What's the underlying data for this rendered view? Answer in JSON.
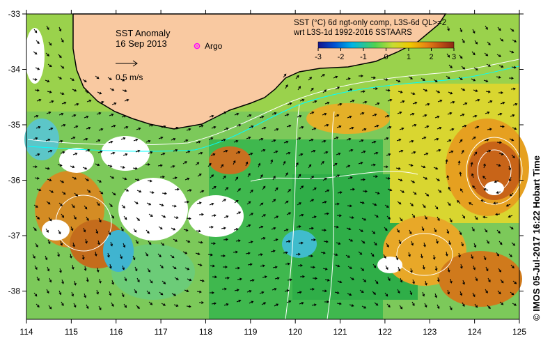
{
  "map": {
    "title": "SST Anomaly",
    "date": "16 Sep 2013",
    "argo_label": "Argo",
    "arrow_label": "0.5 m/s",
    "colorbar": {
      "title_line1": "SST (°C) 6d ngt-only comp, L3S-6d QL>=2",
      "title_line2": "wrt L3S-1d 1992-2016 SSTAARS",
      "ticks": [
        "-3",
        "-2",
        "-1",
        "0",
        "1",
        "2",
        "3"
      ],
      "colors": [
        "#14148c",
        "#0050d2",
        "#00b4e6",
        "#50d250",
        "#c8dc32",
        "#f0c800",
        "#e68214",
        "#be5014",
        "#8c2814"
      ]
    },
    "x_ticks": [
      "114",
      "115",
      "116",
      "117",
      "118",
      "119",
      "120",
      "121",
      "122",
      "123",
      "124",
      "125"
    ],
    "y_ticks": [
      "-33",
      "-34",
      "-35",
      "-36",
      "-37",
      "-38"
    ],
    "credit": "© IMOS 05-Jul-2017 16:22 Hobart Time",
    "colors": {
      "land": "#f9c9a1",
      "argo": "#ff00ff",
      "current_line": "#00ffff"
    }
  }
}
